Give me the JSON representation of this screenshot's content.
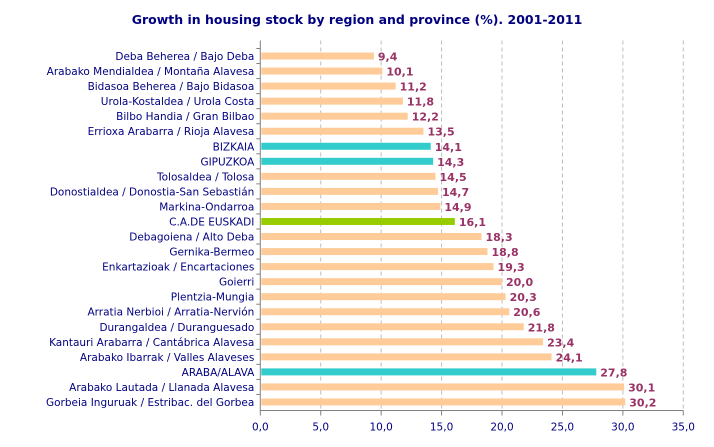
{
  "chart_data": {
    "type": "bar",
    "orientation": "horizontal",
    "title": "Growth in housing stock by region and province (%). 2001-2011",
    "xlabel": "",
    "ylabel": "",
    "xlim": [
      0,
      35
    ],
    "x_ticks": [
      "0,0",
      "5,0",
      "10,0",
      "15,0",
      "20,0",
      "25,0",
      "30,0",
      "35,0"
    ],
    "grid": "vertical dashed",
    "legend": "none",
    "colors": {
      "region": "#FFCC99",
      "province": "#33CCCC",
      "total": "#99CC00",
      "value_label": "#993366",
      "text": "#000080"
    },
    "categories": [
      "Deba Beherea  /  Bajo Deba",
      "Arabako Mendialdea  /  Montaña Alavesa",
      "Bidasoa Beherea  /  Bajo Bidasoa",
      "Urola-Kostaldea  /  Urola Costa",
      "Bilbo Handia  /  Gran Bilbao",
      "Errioxa Arabarra  /  Rioja Alavesa",
      "BIZKAIA",
      "GIPUZKOA",
      "Tolosaldea  /  Tolosa",
      "Donostialdea  /  Donostia-San Sebastián",
      "Markina-Ondarroa",
      "C.A.DE EUSKADI",
      "Debagoiena  /  Alto Deba",
      "Gernika-Bermeo",
      "Enkartazioak  /  Encartaciones",
      "Goierri",
      "Plentzia-Mungia",
      "Arratia Nerbioi  /  Arratia-Nervión",
      "Durangaldea  /  Duranguesado",
      "Kantauri Arabarra  /  Cantábrica Alavesa",
      "Arabako Ibarrak  /  Valles Alaveses",
      "ARABA/ALAVA",
      "Arabako Lautada  /  Llanada Alavesa",
      "Gorbeia Inguruak  /  Estribac. del Gorbea"
    ],
    "values": [
      9.4,
      10.1,
      11.2,
      11.8,
      12.2,
      13.5,
      14.1,
      14.3,
      14.5,
      14.7,
      14.9,
      16.1,
      18.3,
      18.8,
      19.3,
      20.0,
      20.3,
      20.6,
      21.8,
      23.4,
      24.1,
      27.8,
      30.1,
      30.2
    ],
    "value_labels": [
      "9,4",
      "10,1",
      "11,2",
      "11,8",
      "12,2",
      "13,5",
      "14,1",
      "14,3",
      "14,5",
      "14,7",
      "14,9",
      "16,1",
      "18,3",
      "18,8",
      "19,3",
      "20,0",
      "20,3",
      "20,6",
      "21,8",
      "23,4",
      "24,1",
      "27,8",
      "30,1",
      "30,2"
    ],
    "bar_kind": [
      "region",
      "region",
      "region",
      "region",
      "region",
      "region",
      "province",
      "province",
      "region",
      "region",
      "region",
      "total",
      "region",
      "region",
      "region",
      "region",
      "region",
      "region",
      "region",
      "region",
      "region",
      "province",
      "region",
      "region"
    ]
  }
}
